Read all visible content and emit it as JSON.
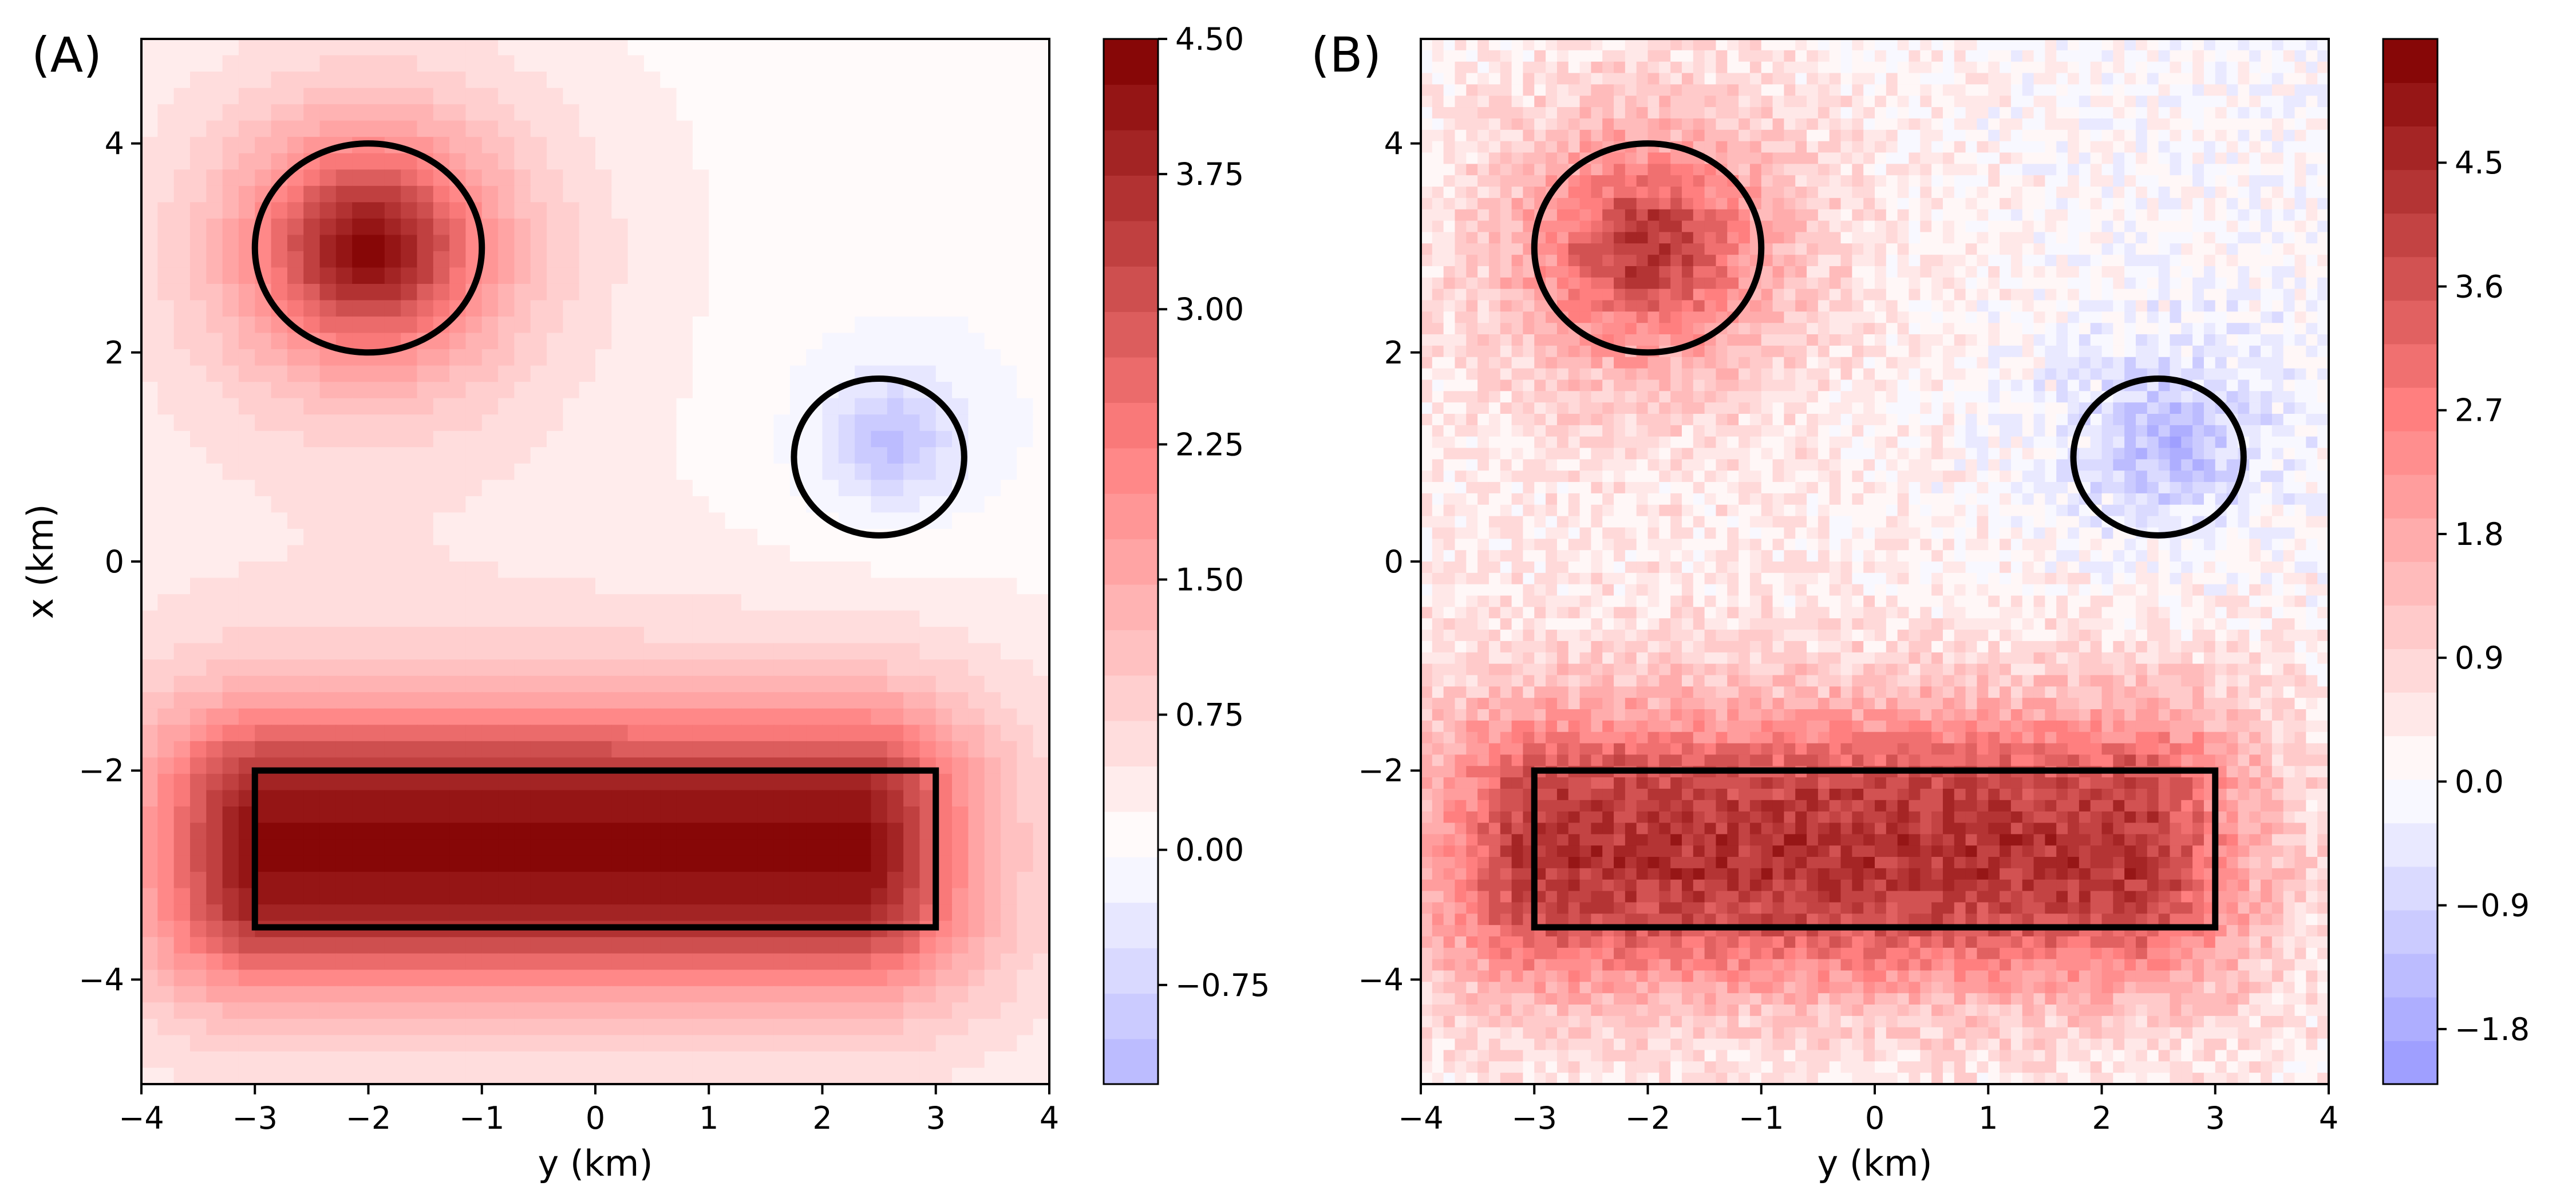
{
  "chart_data": [
    {
      "type": "heatmap",
      "subtype": "filled-contour",
      "panel_label": "(A)",
      "xlabel": "y (km)",
      "ylabel": "x (km)",
      "xlim": [
        -4,
        4
      ],
      "ylim": [
        -5,
        5
      ],
      "x_ticks": [
        -4,
        -3,
        -2,
        -1,
        0,
        1,
        2,
        3,
        4
      ],
      "x_tick_labels": [
        "−4",
        "−3",
        "−2",
        "−1",
        "0",
        "1",
        "2",
        "3",
        "4"
      ],
      "y_ticks": [
        -4,
        -2,
        0,
        2,
        4
      ],
      "y_tick_labels": [
        "−4",
        "−2",
        "0",
        "2",
        "4"
      ],
      "colormap": "bwr",
      "colorbar": {
        "min": -1.3,
        "max": 4.5,
        "vmin_norm": -4.5,
        "vmax_norm": 4.5,
        "levels": 23,
        "ticks": [
          -0.75,
          0.0,
          0.75,
          1.5,
          2.25,
          3.0,
          3.75,
          4.5
        ],
        "tick_labels": [
          "−0.75",
          "0.00",
          "0.75",
          "1.50",
          "2.25",
          "3.00",
          "3.75",
          "4.50"
        ]
      },
      "field": {
        "anomalies": [
          {
            "kind": "circle",
            "center": [
              -2.0,
              3.0
            ],
            "amplitude": 4.3,
            "radius": 1.0
          },
          {
            "kind": "circle",
            "center": [
              2.6,
              1.15
            ],
            "amplitude": -1.3,
            "radius": 0.55
          },
          {
            "kind": "rectangle",
            "center": [
              -0.3,
              -2.75
            ],
            "amplitude": 4.3,
            "half_size": [
              2.6,
              0.6
            ]
          }
        ],
        "noise": 0
      },
      "outlines": [
        {
          "shape": "ellipse",
          "center": [
            -2.0,
            3.0
          ],
          "radius": [
            1.0,
            1.0
          ]
        },
        {
          "shape": "ellipse",
          "center": [
            2.5,
            1.0
          ],
          "radius": [
            0.75,
            0.75
          ]
        },
        {
          "shape": "rectangle",
          "y_range": [
            -3,
            3
          ],
          "x_range": [
            -3.5,
            -2
          ]
        }
      ],
      "grid": false
    },
    {
      "type": "heatmap",
      "subtype": "filled-contour",
      "panel_label": "(B)",
      "xlabel": "y (km)",
      "ylabel": "",
      "xlim": [
        -4,
        4
      ],
      "ylim": [
        -5,
        5
      ],
      "x_ticks": [
        -4,
        -3,
        -2,
        -1,
        0,
        1,
        2,
        3,
        4
      ],
      "x_tick_labels": [
        "−4",
        "−3",
        "−2",
        "−1",
        "0",
        "1",
        "2",
        "3",
        "4"
      ],
      "y_ticks": [
        -4,
        -2,
        0,
        2,
        4
      ],
      "y_tick_labels": [
        "−4",
        "−2",
        "0",
        "2",
        "4"
      ],
      "colormap": "bwr",
      "colorbar": {
        "min": -2.2,
        "max": 5.4,
        "vmin_norm": -5.4,
        "vmax_norm": 5.4,
        "levels": 24,
        "ticks": [
          -1.8,
          -0.9,
          0.0,
          0.9,
          1.8,
          2.7,
          3.6,
          4.5
        ],
        "tick_labels": [
          "−1.8",
          "−0.9",
          "0.0",
          "0.9",
          "1.8",
          "2.7",
          "3.6",
          "4.5"
        ]
      },
      "field": {
        "anomalies": [
          {
            "kind": "circle",
            "center": [
              -2.0,
              3.0
            ],
            "amplitude": 4.3,
            "radius": 1.0
          },
          {
            "kind": "circle",
            "center": [
              2.6,
              1.15
            ],
            "amplitude": -1.6,
            "radius": 0.7
          },
          {
            "kind": "rectangle",
            "center": [
              -0.3,
              -2.75
            ],
            "amplitude": 4.3,
            "half_size": [
              2.6,
              0.6
            ]
          }
        ],
        "noise": 0.55
      },
      "outlines": [
        {
          "shape": "ellipse",
          "center": [
            -2.0,
            3.0
          ],
          "radius": [
            1.0,
            1.0
          ]
        },
        {
          "shape": "ellipse",
          "center": [
            2.5,
            1.0
          ],
          "radius": [
            0.75,
            0.75
          ]
        },
        {
          "shape": "rectangle",
          "y_range": [
            -3,
            3
          ],
          "x_range": [
            -3.5,
            -2
          ]
        }
      ],
      "grid": false
    }
  ]
}
